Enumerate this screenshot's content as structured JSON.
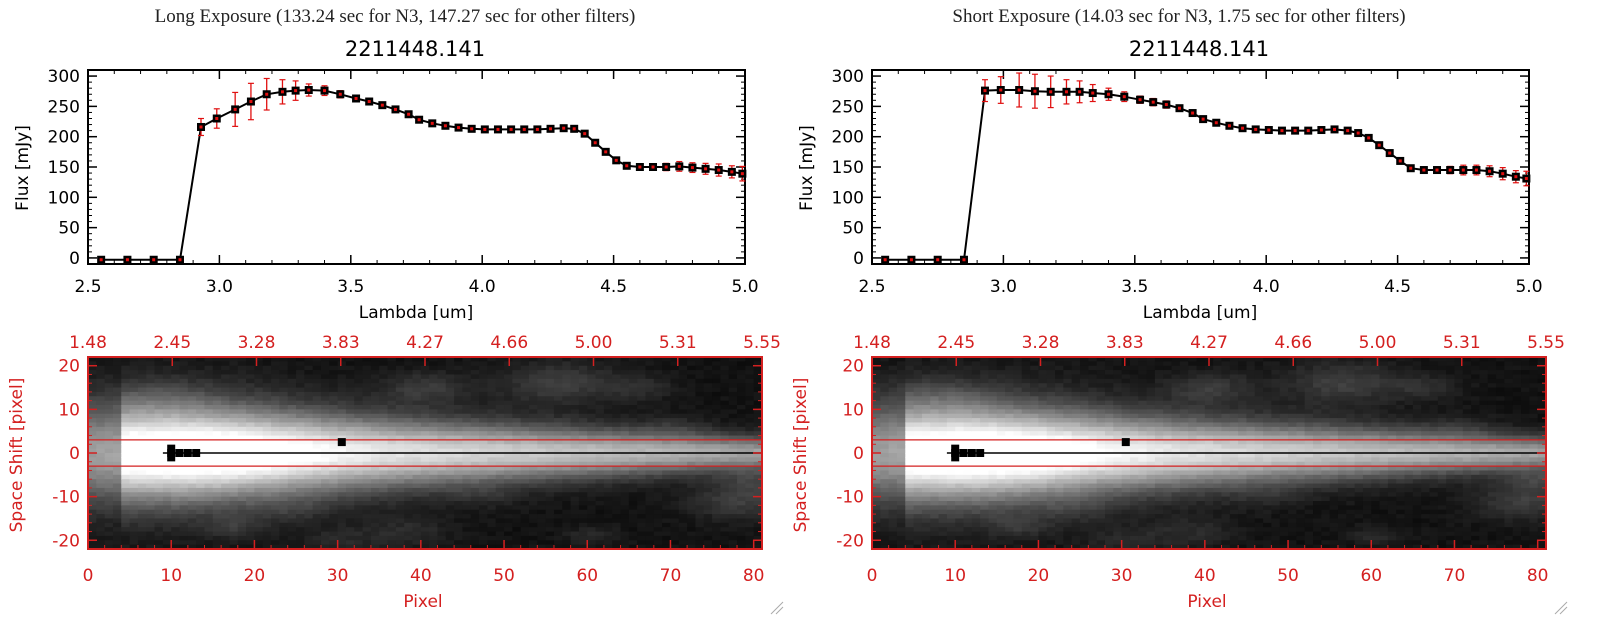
{
  "panels": [
    {
      "title": "Long Exposure (133.24 sec for N3, 147.27 sec for other filters)",
      "chart_data": [
        {
          "type": "line",
          "title": "2211448.141",
          "xlabel": "Lambda [um]",
          "ylabel": "Flux [mJy]",
          "xlim": [
            2.5,
            5.0
          ],
          "ylim": [
            -10,
            310
          ],
          "xticks": [
            "2.5",
            "3.0",
            "3.5",
            "4.0",
            "4.5",
            "5.0"
          ],
          "yticks": [
            "0",
            "50",
            "100",
            "150",
            "200",
            "250",
            "300"
          ],
          "series": [
            {
              "x": [
                2.55,
                2.65,
                2.75,
                2.85,
                2.93,
                2.99,
                3.06,
                3.12,
                3.18,
                3.24,
                3.29,
                3.34,
                3.4,
                3.46,
                3.52,
                3.57,
                3.62,
                3.67,
                3.72,
                3.76,
                3.81,
                3.86,
                3.91,
                3.96,
                4.01,
                4.06,
                4.11,
                4.16,
                4.21,
                4.26,
                4.31,
                4.35,
                4.39,
                4.43,
                4.47,
                4.51,
                4.55,
                4.6,
                4.65,
                4.7,
                4.75,
                4.8,
                4.85,
                4.9,
                4.95,
                4.99
              ],
              "y": [
                -3,
                -3,
                -3,
                -3,
                216,
                230,
                245,
                258,
                270,
                274,
                276,
                277,
                276,
                270,
                263,
                258,
                252,
                245,
                237,
                228,
                222,
                218,
                215,
                213,
                212,
                212,
                212,
                212,
                212,
                213,
                214,
                213,
                205,
                190,
                175,
                161,
                152,
                150,
                150,
                150,
                151,
                149,
                147,
                145,
                142,
                139
              ],
              "err": [
                0,
                0,
                0,
                0,
                14,
                16,
                28,
                30,
                26,
                20,
                16,
                10,
                8,
                6,
                5,
                5,
                5,
                5,
                5,
                4,
                4,
                4,
                4,
                4,
                4,
                4,
                4,
                4,
                4,
                4,
                4,
                4,
                4,
                4,
                4,
                4,
                4,
                5,
                5,
                6,
                8,
                8,
                9,
                10,
                10,
                12
              ]
            }
          ]
        },
        {
          "type": "heatmap",
          "title": "",
          "xlabel": "Pixel",
          "ylabel": "Space Shift [pixel]",
          "xlim": [
            0,
            81
          ],
          "ylim": [
            -22,
            22
          ],
          "xticks": [
            "0",
            "10",
            "20",
            "30",
            "40",
            "50",
            "60",
            "70",
            "80"
          ],
          "yticks": [
            "-20",
            "-10",
            "0",
            "10",
            "20"
          ],
          "top_ticks": [
            "1.48",
            "2.45",
            "3.28",
            "3.83",
            "4.27",
            "4.66",
            "5.00",
            "5.31",
            "5.55"
          ],
          "aperture_lines": [
            -3,
            3
          ],
          "trace_y": 0,
          "marker_points": [
            [
              10,
              1
            ],
            [
              10,
              0
            ],
            [
              11,
              0
            ],
            [
              10,
              -1
            ],
            [
              12,
              0
            ],
            [
              13,
              0
            ],
            [
              30.5,
              2.5
            ]
          ]
        }
      ]
    },
    {
      "title": "Short Exposure (14.03 sec for N3, 1.75 sec for other filters)",
      "chart_data": [
        {
          "type": "line",
          "title": "2211448.141",
          "xlabel": "Lambda [um]",
          "ylabel": "Flux [mJy]",
          "xlim": [
            2.5,
            5.0
          ],
          "ylim": [
            -10,
            310
          ],
          "xticks": [
            "2.5",
            "3.0",
            "3.5",
            "4.0",
            "4.5",
            "5.0"
          ],
          "yticks": [
            "0",
            "50",
            "100",
            "150",
            "200",
            "250",
            "300"
          ],
          "series": [
            {
              "x": [
                2.55,
                2.65,
                2.75,
                2.85,
                2.93,
                2.99,
                3.06,
                3.12,
                3.18,
                3.24,
                3.29,
                3.34,
                3.4,
                3.46,
                3.52,
                3.57,
                3.62,
                3.67,
                3.72,
                3.76,
                3.81,
                3.86,
                3.91,
                3.96,
                4.01,
                4.06,
                4.11,
                4.16,
                4.21,
                4.26,
                4.31,
                4.35,
                4.39,
                4.43,
                4.47,
                4.51,
                4.55,
                4.6,
                4.65,
                4.7,
                4.75,
                4.8,
                4.85,
                4.9,
                4.95,
                4.99
              ],
              "y": [
                -3,
                -3,
                -3,
                -3,
                276,
                277,
                277,
                275,
                274,
                274,
                274,
                272,
                270,
                266,
                261,
                257,
                253,
                247,
                239,
                229,
                223,
                218,
                214,
                212,
                211,
                210,
                210,
                210,
                211,
                212,
                210,
                206,
                198,
                186,
                173,
                160,
                148,
                145,
                145,
                145,
                145,
                145,
                143,
                139,
                134,
                131
              ],
              "err": [
                0,
                0,
                0,
                0,
                18,
                22,
                28,
                28,
                26,
                20,
                18,
                14,
                10,
                8,
                6,
                6,
                6,
                5,
                5,
                5,
                4,
                4,
                4,
                4,
                4,
                4,
                4,
                4,
                4,
                4,
                4,
                4,
                4,
                4,
                4,
                4,
                4,
                5,
                5,
                6,
                8,
                8,
                9,
                10,
                10,
                12
              ]
            }
          ]
        },
        {
          "type": "heatmap",
          "title": "",
          "xlabel": "Pixel",
          "ylabel": "Space Shift [pixel]",
          "xlim": [
            0,
            81
          ],
          "ylim": [
            -22,
            22
          ],
          "xticks": [
            "0",
            "10",
            "20",
            "30",
            "40",
            "50",
            "60",
            "70",
            "80"
          ],
          "yticks": [
            "-20",
            "-10",
            "0",
            "10",
            "20"
          ],
          "top_ticks": [
            "1.48",
            "2.45",
            "3.28",
            "3.83",
            "4.27",
            "4.66",
            "5.00",
            "5.31",
            "5.55"
          ],
          "aperture_lines": [
            -3,
            3
          ],
          "trace_y": 0,
          "marker_points": [
            [
              10,
              1
            ],
            [
              10,
              0
            ],
            [
              11,
              0
            ],
            [
              10,
              -1
            ],
            [
              12,
              0
            ],
            [
              13,
              0
            ],
            [
              30.5,
              2.5
            ]
          ]
        }
      ]
    }
  ],
  "colors": {
    "line": "#000000",
    "marker": "#000000",
    "error_bar": "#e01010",
    "image_axes": "#d42020"
  }
}
